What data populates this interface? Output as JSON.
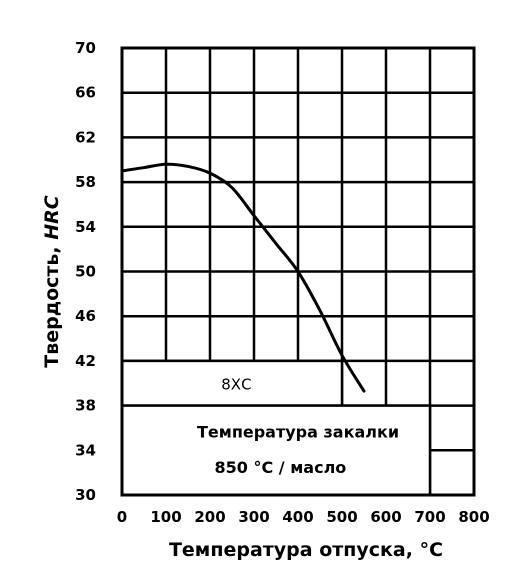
{
  "chart_data": {
    "type": "line",
    "xlabel": "Температура отпуска, °С",
    "ylabel_prefix": "Твердость, ",
    "ylabel_unit": "HRC",
    "xlim": [
      0,
      800
    ],
    "ylim": [
      30,
      70
    ],
    "grid": true,
    "x_ticks": [
      0,
      100,
      200,
      300,
      400,
      500,
      600,
      700,
      800
    ],
    "x_tick_labels": [
      "0",
      "100",
      "200",
      "300",
      "400",
      "500",
      "600",
      "700",
      "800"
    ],
    "y_ticks": [
      30,
      34,
      38,
      42,
      46,
      50,
      54,
      58,
      62,
      66,
      70
    ],
    "y_tick_labels": [
      "30",
      "34",
      "38",
      "42",
      "46",
      "50",
      "54",
      "58",
      "62",
      "66",
      "70"
    ],
    "series": [
      {
        "name": "8ХС",
        "x": [
          0,
          50,
          100,
          150,
          200,
          250,
          300,
          350,
          400,
          450,
          500,
          550
        ],
        "y": [
          59.0,
          59.3,
          59.6,
          59.4,
          58.8,
          57.5,
          55.0,
          52.5,
          50.0,
          46.5,
          42.5,
          39.3
        ]
      }
    ],
    "annotations": {
      "steel_label": "8ХС",
      "quench_line1": "Температура закалки",
      "quench_line2": "850 °С / масло"
    }
  }
}
